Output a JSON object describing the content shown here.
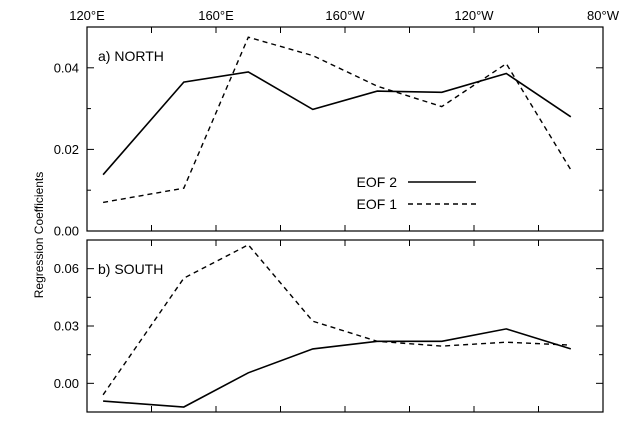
{
  "chart_data": {
    "type": "line",
    "ylabel": "Regression Coefficients",
    "x_axis": {
      "ticks": [
        120,
        140,
        160,
        180,
        200,
        220,
        240,
        260,
        280
      ],
      "labeled_ticks": [
        {
          "x": 120,
          "label": "120°E"
        },
        {
          "x": 160,
          "label": "160°E"
        },
        {
          "x": 200,
          "label": "160°W"
        },
        {
          "x": 240,
          "label": "120°W"
        },
        {
          "x": 280,
          "label": "80°W"
        }
      ],
      "xlim": [
        120,
        280
      ]
    },
    "legend": {
      "placement": "inside upper panel, lower-right",
      "entries": [
        {
          "label": "EOF 2",
          "style": "solid"
        },
        {
          "label": "EOF 1",
          "style": "dashed"
        }
      ]
    },
    "panels": [
      {
        "title": "a) NORTH",
        "ylim": [
          0.0,
          0.05
        ],
        "yticks": [
          {
            "v": 0.0,
            "label": "0.00"
          },
          {
            "v": 0.02,
            "label": "0.02"
          },
          {
            "v": 0.04,
            "label": "0.04"
          }
        ],
        "series": [
          {
            "name": "EOF 2",
            "style": "solid",
            "x": [
              125,
              150,
              170,
              190,
              210,
              230,
              250,
              270
            ],
            "y": [
              0.0138,
              0.0365,
              0.039,
              0.0298,
              0.0343,
              0.034,
              0.0386,
              0.028
            ]
          },
          {
            "name": "EOF 1",
            "style": "dashed",
            "x": [
              125,
              150,
              170,
              190,
              210,
              230,
              250,
              270
            ],
            "y": [
              0.007,
              0.0105,
              0.0475,
              0.043,
              0.0355,
              0.0305,
              0.041,
              0.015
            ]
          }
        ]
      },
      {
        "title": "b) SOUTH",
        "ylim": [
          -0.015,
          0.075
        ],
        "yticks": [
          {
            "v": 0.0,
            "label": "0.00"
          },
          {
            "v": 0.03,
            "label": "0.03"
          },
          {
            "v": 0.06,
            "label": "0.06"
          }
        ],
        "series": [
          {
            "name": "EOF 2",
            "style": "solid",
            "x": [
              125,
              150,
              170,
              190,
              210,
              230,
              250,
              270
            ],
            "y": [
              -0.0093,
              -0.0124,
              0.0055,
              0.018,
              0.022,
              0.022,
              0.0285,
              0.018
            ]
          },
          {
            "name": "EOF 1",
            "style": "dashed",
            "x": [
              125,
              150,
              170,
              190,
              210,
              230,
              250,
              270
            ],
            "y": [
              -0.006,
              0.055,
              0.0725,
              0.0325,
              0.022,
              0.0195,
              0.0215,
              0.02
            ]
          }
        ]
      }
    ]
  }
}
